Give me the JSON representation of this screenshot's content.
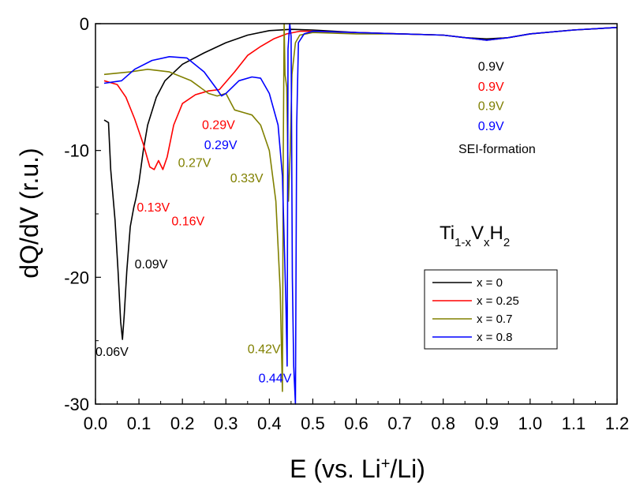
{
  "chart_data": {
    "type": "line",
    "xlabel_parts": [
      "E (vs. Li",
      "+",
      "/Li)"
    ],
    "ylabel": "dQ/dV (r.u.)",
    "xlim": [
      0.0,
      1.2
    ],
    "ylim": [
      -30,
      0
    ],
    "x_ticks": [
      "0.0",
      "0.1",
      "0.2",
      "0.3",
      "0.4",
      "0.5",
      "0.6",
      "0.7",
      "0.8",
      "0.9",
      "1.0",
      "1.1",
      "1.2"
    ],
    "y_ticks": [
      "0",
      "-10",
      "-20",
      "-30"
    ],
    "y_tick_values": [
      0,
      -10,
      -20,
      -30
    ],
    "grid": false,
    "legend_position": "lower-right",
    "formula": {
      "parts": [
        "Ti",
        "1-x",
        "V",
        "x",
        "H",
        "2"
      ]
    },
    "series": [
      {
        "name": "x = 0",
        "color": "#000000",
        "points": [
          [
            0.02,
            -7.6
          ],
          [
            0.03,
            -7.8
          ],
          [
            0.035,
            -11.5
          ],
          [
            0.045,
            -15.5
          ],
          [
            0.052,
            -19.5
          ],
          [
            0.058,
            -23.5
          ],
          [
            0.062,
            -24.9
          ],
          [
            0.066,
            -23.0
          ],
          [
            0.072,
            -19.5
          ],
          [
            0.08,
            -16.0
          ],
          [
            0.088,
            -14.5
          ],
          [
            0.093,
            -13.8
          ],
          [
            0.1,
            -12.5
          ],
          [
            0.11,
            -10.0
          ],
          [
            0.12,
            -8.0
          ],
          [
            0.14,
            -5.8
          ],
          [
            0.16,
            -4.5
          ],
          [
            0.2,
            -3.2
          ],
          [
            0.25,
            -2.3
          ],
          [
            0.3,
            -1.5
          ],
          [
            0.35,
            -0.9
          ],
          [
            0.4,
            -0.55
          ],
          [
            0.45,
            -0.45
          ],
          [
            0.5,
            -0.5
          ],
          [
            0.6,
            -0.7
          ],
          [
            0.7,
            -0.8
          ],
          [
            0.8,
            -0.9
          ],
          [
            0.85,
            -1.1
          ],
          [
            0.9,
            -1.2
          ],
          [
            0.95,
            -1.1
          ],
          [
            1.0,
            -0.8
          ],
          [
            1.1,
            -0.5
          ],
          [
            1.2,
            -0.3
          ]
        ]
      },
      {
        "name": "x = 0.25",
        "color": "#ff0000",
        "points": [
          [
            0.02,
            -4.5
          ],
          [
            0.05,
            -4.8
          ],
          [
            0.07,
            -5.8
          ],
          [
            0.09,
            -7.5
          ],
          [
            0.11,
            -9.5
          ],
          [
            0.125,
            -11.3
          ],
          [
            0.135,
            -11.5
          ],
          [
            0.145,
            -10.8
          ],
          [
            0.155,
            -11.5
          ],
          [
            0.165,
            -10.5
          ],
          [
            0.18,
            -8.0
          ],
          [
            0.2,
            -6.3
          ],
          [
            0.23,
            -5.6
          ],
          [
            0.26,
            -5.3
          ],
          [
            0.285,
            -5.2
          ],
          [
            0.3,
            -4.6
          ],
          [
            0.32,
            -3.8
          ],
          [
            0.35,
            -2.5
          ],
          [
            0.38,
            -1.8
          ],
          [
            0.41,
            -1.2
          ],
          [
            0.44,
            -0.8
          ],
          [
            0.47,
            -0.6
          ],
          [
            0.5,
            -0.6
          ],
          [
            0.6,
            -0.7
          ],
          [
            0.7,
            -0.8
          ],
          [
            0.8,
            -0.9
          ],
          [
            0.85,
            -1.1
          ],
          [
            0.9,
            -1.3
          ],
          [
            0.95,
            -1.1
          ],
          [
            1.0,
            -0.8
          ],
          [
            1.1,
            -0.5
          ],
          [
            1.2,
            -0.3
          ]
        ]
      },
      {
        "name": "x = 0.7",
        "color": "#808000",
        "points": [
          [
            0.02,
            -4.0
          ],
          [
            0.08,
            -3.8
          ],
          [
            0.12,
            -3.6
          ],
          [
            0.17,
            -3.8
          ],
          [
            0.22,
            -4.5
          ],
          [
            0.26,
            -5.5
          ],
          [
            0.28,
            -5.7
          ],
          [
            0.3,
            -5.5
          ],
          [
            0.32,
            -6.8
          ],
          [
            0.34,
            -7.0
          ],
          [
            0.36,
            -7.2
          ],
          [
            0.38,
            -8.0
          ],
          [
            0.4,
            -10.0
          ],
          [
            0.415,
            -14.0
          ],
          [
            0.425,
            -21.0
          ],
          [
            0.43,
            -29.0
          ],
          [
            0.432,
            -10.0
          ],
          [
            0.434,
            0.0
          ],
          [
            0.436,
            -4.0
          ],
          [
            0.44,
            -5.0
          ],
          [
            0.444,
            -14.0
          ],
          [
            0.448,
            -10.0
          ],
          [
            0.452,
            -4.0
          ],
          [
            0.46,
            -1.5
          ],
          [
            0.47,
            -0.9
          ],
          [
            0.5,
            -0.7
          ],
          [
            0.6,
            -0.8
          ],
          [
            0.7,
            -0.8
          ],
          [
            0.8,
            -0.9
          ],
          [
            0.85,
            -1.1
          ],
          [
            0.9,
            -1.3
          ],
          [
            0.95,
            -1.1
          ],
          [
            1.0,
            -0.8
          ],
          [
            1.1,
            -0.5
          ],
          [
            1.2,
            -0.3
          ]
        ]
      },
      {
        "name": "x = 0.8",
        "color": "#0000ff",
        "points": [
          [
            0.02,
            -4.7
          ],
          [
            0.06,
            -4.5
          ],
          [
            0.09,
            -3.6
          ],
          [
            0.13,
            -2.9
          ],
          [
            0.17,
            -2.6
          ],
          [
            0.21,
            -2.7
          ],
          [
            0.25,
            -3.8
          ],
          [
            0.28,
            -5.2
          ],
          [
            0.29,
            -5.7
          ],
          [
            0.3,
            -5.5
          ],
          [
            0.33,
            -4.5
          ],
          [
            0.36,
            -4.2
          ],
          [
            0.38,
            -4.3
          ],
          [
            0.4,
            -5.5
          ],
          [
            0.42,
            -8.0
          ],
          [
            0.43,
            -12.0
          ],
          [
            0.438,
            -22.0
          ],
          [
            0.441,
            -27.0
          ],
          [
            0.443,
            -2.0
          ],
          [
            0.447,
            0.0
          ],
          [
            0.45,
            -1.0
          ],
          [
            0.453,
            -20.0
          ],
          [
            0.456,
            -27.0
          ],
          [
            0.46,
            -30.0
          ],
          [
            0.463,
            -8.0
          ],
          [
            0.467,
            -1.5
          ],
          [
            0.48,
            -0.8
          ],
          [
            0.5,
            -0.6
          ],
          [
            0.6,
            -0.7
          ],
          [
            0.7,
            -0.8
          ],
          [
            0.8,
            -0.9
          ],
          [
            0.85,
            -1.1
          ],
          [
            0.9,
            -1.3
          ],
          [
            0.95,
            -1.1
          ],
          [
            1.0,
            -0.8
          ],
          [
            1.1,
            -0.5
          ],
          [
            1.2,
            -0.3
          ]
        ]
      }
    ],
    "annotations": [
      {
        "text": "0.06V",
        "color": "#000000",
        "x": 0.0,
        "y": -26.2
      },
      {
        "text": "0.09V",
        "color": "#000000",
        "x": 0.09,
        "y": -19.3
      },
      {
        "text": "0.13V",
        "color": "#ff0000",
        "x": 0.095,
        "y": -14.8
      },
      {
        "text": "0.16V",
        "color": "#ff0000",
        "x": 0.175,
        "y": -15.9
      },
      {
        "text": "0.29V",
        "color": "#ff0000",
        "x": 0.245,
        "y": -8.3
      },
      {
        "text": "0.29V",
        "color": "#0000ff",
        "x": 0.25,
        "y": -9.9
      },
      {
        "text": "0.27V",
        "color": "#808000",
        "x": 0.19,
        "y": -11.3
      },
      {
        "text": "0.33V",
        "color": "#808000",
        "x": 0.31,
        "y": -12.5
      },
      {
        "text": "0.42V",
        "color": "#808000",
        "x": 0.35,
        "y": -26.0
      },
      {
        "text": "0.44V",
        "color": "#0000ff",
        "x": 0.375,
        "y": -28.3
      },
      {
        "text": "0.9V",
        "color": "#000000",
        "x": 0.88,
        "y": -3.7
      },
      {
        "text": "0.9V",
        "color": "#ff0000",
        "x": 0.88,
        "y": -5.3
      },
      {
        "text": "0.9V",
        "color": "#808000",
        "x": 0.88,
        "y": -6.8
      },
      {
        "text": "0.9V",
        "color": "#0000ff",
        "x": 0.88,
        "y": -8.4
      },
      {
        "text": "SEI-formation",
        "color": "#000000",
        "x": 0.835,
        "y": -10.2
      }
    ]
  }
}
